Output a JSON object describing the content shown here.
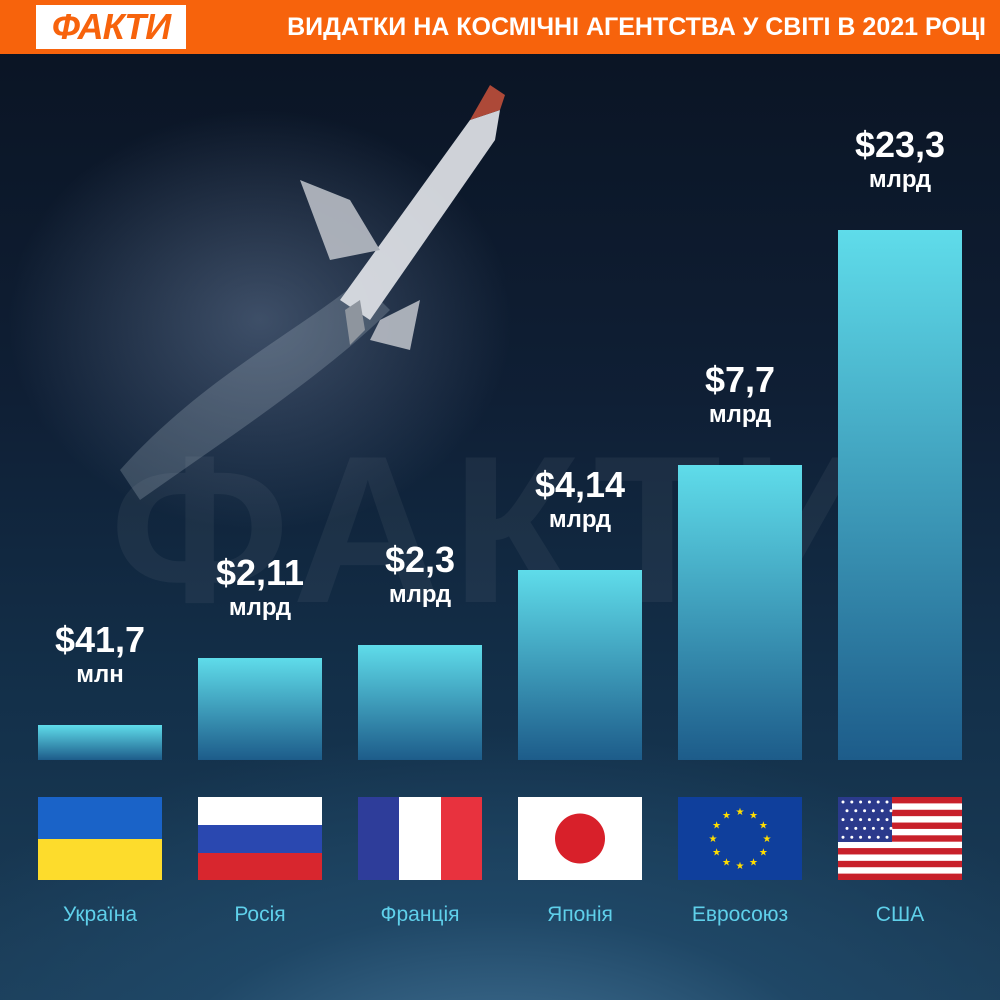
{
  "header": {
    "logo": "ФАКТИ",
    "title": "ВИДАТКИ НА КОСМІЧНІ АГЕНТСТВА У СВІТІ В 2021 РОЦІ"
  },
  "watermark": "ФАКТИ",
  "colors": {
    "brand": "#f7630c",
    "bar_top": "#5fdcea",
    "bar_bottom": "#1d5c8a",
    "label": "#5fd0ea"
  },
  "chart_data": {
    "type": "bar",
    "title": "ВИДАТКИ НА КОСМІЧНІ АГЕНТСТВА У СВІТІ В 2021 РОЦІ",
    "categories": [
      "Україна",
      "Росія",
      "Франція",
      "Японія",
      "Евросоюз",
      "США"
    ],
    "values": [
      41.7,
      2110,
      2300,
      4140,
      7700,
      23300
    ],
    "unit_note": "values in $ millions",
    "labels": [
      {
        "amount": "$41,7",
        "unit": "млн"
      },
      {
        "amount": "$2,11",
        "unit": "млрд"
      },
      {
        "amount": "$2,3",
        "unit": "млрд"
      },
      {
        "amount": "$4,14",
        "unit": "млрд"
      },
      {
        "amount": "$7,7",
        "unit": "млрд"
      },
      {
        "amount": "$23,3",
        "unit": "млрд"
      }
    ],
    "flags": [
      "ukraine-flag-icon",
      "russia-flag-icon",
      "france-flag-icon",
      "japan-flag-icon",
      "eu-flag-icon",
      "usa-flag-icon"
    ],
    "grid": false,
    "legend": "none"
  }
}
